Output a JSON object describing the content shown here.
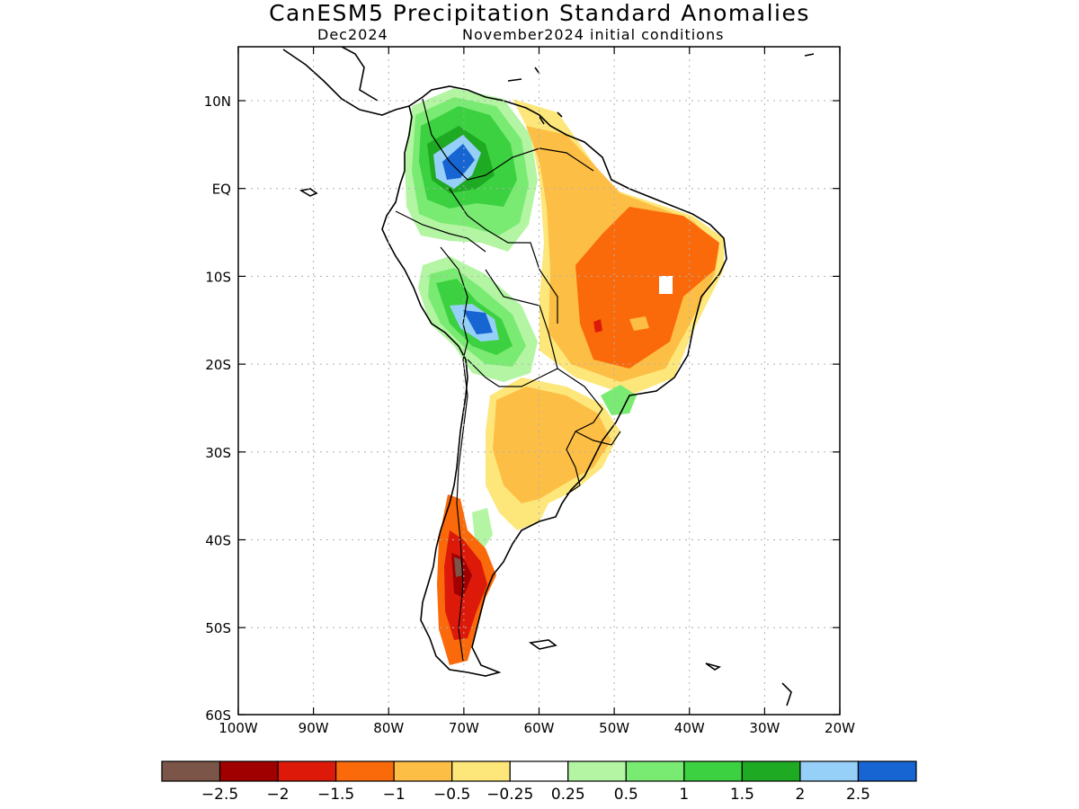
{
  "title": "CanESM5 Precipitation Standard Anomalies",
  "subtitle_left": "Dec2024",
  "subtitle_right": "November2024 initial conditions",
  "map": {
    "lon_labels": [
      "100W",
      "90W",
      "80W",
      "70W",
      "60W",
      "50W",
      "40W",
      "30W",
      "20W"
    ],
    "lat_labels": [
      "10N",
      "EQ",
      "10S",
      "20S",
      "30S",
      "40S",
      "50S",
      "60S"
    ]
  },
  "colorbar": {
    "colors": [
      "#7a5548",
      "#a10000",
      "#dd1a0a",
      "#fa6a0a",
      "#fdbe46",
      "#fde77b",
      "#ffffff",
      "#b4f5a4",
      "#7aeb72",
      "#3cd140",
      "#1faa24",
      "#96d0f8",
      "#1665d2"
    ],
    "labels": [
      "−2.5",
      "−2",
      "−1.5",
      "−1",
      "−0.5",
      "−0.25",
      "0.25",
      "0.5",
      "1",
      "1.5",
      "2",
      "2.5"
    ]
  }
}
